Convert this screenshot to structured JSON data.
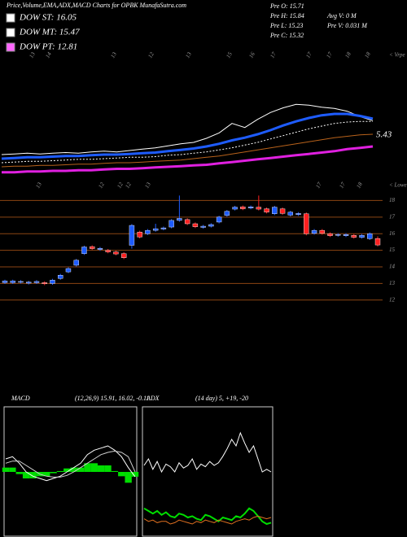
{
  "header": {
    "title": "Price,Volume,EMA,ADX,MACD Charts for OPBK MunafaSutra.com"
  },
  "legend": [
    {
      "label": "DOW ST: 16.05",
      "color": "#ffffff"
    },
    {
      "label": "DOW MT: 15.47",
      "color": "#ffffff"
    },
    {
      "label": "DOW PT: 12.81",
      "color": "#ff66ff"
    }
  ],
  "quote": [
    "Pre  O: 15.71",
    "Pre  H: 15.84",
    "Pre  L: 15.23",
    "Pre  C: 15.32",
    "Avg V: 0  M",
    "Pre  V: 0.031 M"
  ],
  "chart_data": [
    {
      "type": "line",
      "corner_label": "< Vrpe",
      "annotation": "5.43",
      "top_labels": [
        "13",
        "14",
        "13",
        "12",
        "13",
        "15",
        "16",
        "17",
        "17",
        "17",
        "18",
        "18"
      ],
      "ylim": [
        8,
        20
      ],
      "series": [
        {
          "color": "#ffffff",
          "width": 1,
          "values": [
            11.0,
            11.1,
            11.2,
            11.1,
            11.2,
            11.3,
            11.2,
            11.4,
            11.5,
            11.4,
            11.6,
            11.8,
            12.0,
            12.3,
            12.6,
            12.8,
            13.4,
            14.2,
            15.6,
            15.0,
            16.2,
            17.2,
            17.9,
            18.4,
            18.3,
            18.0,
            17.8,
            17.4,
            16.6,
            16.0
          ]
        },
        {
          "color": "#1e5cff",
          "width": 3,
          "values": [
            10.4,
            10.5,
            10.6,
            10.6,
            10.7,
            10.8,
            10.8,
            10.9,
            11.0,
            11.0,
            11.1,
            11.2,
            11.3,
            11.5,
            11.7,
            11.9,
            12.2,
            12.6,
            13.1,
            13.5,
            14.0,
            14.6,
            15.3,
            15.9,
            16.4,
            16.8,
            17.0,
            17.0,
            16.7,
            16.3
          ]
        },
        {
          "color": "#ffffff",
          "width": 1,
          "dash": true,
          "values": [
            9.8,
            9.9,
            10.0,
            10.0,
            10.1,
            10.2,
            10.3,
            10.3,
            10.4,
            10.5,
            10.6,
            10.6,
            10.7,
            10.9,
            11.0,
            11.2,
            11.4,
            11.7,
            12.0,
            12.4,
            12.8,
            13.3,
            13.8,
            14.3,
            14.8,
            15.2,
            15.6,
            15.8,
            15.9,
            15.9
          ]
        },
        {
          "color": "#b8621b",
          "width": 1,
          "values": [
            9.2,
            9.3,
            9.3,
            9.4,
            9.4,
            9.5,
            9.6,
            9.6,
            9.7,
            9.8,
            9.8,
            9.9,
            10.0,
            10.1,
            10.2,
            10.4,
            10.6,
            10.8,
            11.1,
            11.4,
            11.7,
            12.0,
            12.3,
            12.6,
            12.9,
            13.2,
            13.5,
            13.7,
            13.9,
            14.0
          ]
        },
        {
          "color": "#e020e0",
          "width": 3,
          "values": [
            8.4,
            8.4,
            8.5,
            8.5,
            8.6,
            8.6,
            8.7,
            8.7,
            8.8,
            8.9,
            8.9,
            9.0,
            9.1,
            9.2,
            9.3,
            9.4,
            9.5,
            9.7,
            9.9,
            10.1,
            10.3,
            10.5,
            10.7,
            10.9,
            11.1,
            11.3,
            11.5,
            11.8,
            12.0,
            12.2
          ]
        }
      ]
    },
    {
      "type": "candlestick",
      "corner_label": "< Lower",
      "top_labels": [
        "13",
        "12",
        "12",
        "12",
        "13",
        "17",
        "17",
        "18"
      ],
      "ylim": [
        11.5,
        19.1
      ],
      "yticks": [
        18,
        17,
        16,
        15,
        14,
        13,
        12
      ],
      "grid": true,
      "grid_color": "#8b4513",
      "up_color": "#1e5cff",
      "down_color": "#ff2020",
      "open": [
        13.05,
        13.05,
        13.08,
        13.02,
        13.05,
        13.05,
        13.0,
        13.3,
        13.7,
        14.1,
        14.8,
        15.22,
        15.05,
        15.0,
        14.9,
        14.8,
        15.3,
        16.1,
        16.0,
        16.2,
        16.28,
        16.4,
        16.8,
        16.85,
        16.6,
        16.38,
        16.45,
        16.7,
        17.1,
        17.48,
        17.62,
        17.55,
        17.6,
        17.5,
        17.2,
        17.5,
        17.12,
        17.15,
        17.2,
        16.02,
        16.2,
        16.0,
        15.9,
        15.88,
        15.9,
        15.78,
        15.7,
        15.71
      ],
      "high": [
        13.23,
        13.23,
        13.2,
        13.16,
        13.2,
        13.13,
        13.28,
        13.58,
        13.98,
        14.48,
        15.28,
        15.3,
        15.2,
        15.08,
        14.98,
        14.88,
        16.58,
        16.18,
        16.28,
        16.6,
        16.43,
        16.88,
        18.3,
        16.93,
        16.68,
        16.53,
        16.63,
        17.08,
        17.43,
        17.68,
        17.7,
        17.7,
        18.3,
        17.58,
        17.68,
        17.58,
        17.38,
        17.3,
        17.28,
        16.28,
        16.28,
        16.08,
        16.03,
        16.03,
        15.98,
        15.98,
        16.08,
        15.84
      ],
      "low": [
        12.97,
        12.97,
        13.0,
        12.94,
        12.97,
        12.9,
        12.92,
        13.22,
        13.62,
        14.02,
        14.72,
        15.02,
        14.97,
        14.82,
        14.7,
        14.47,
        15.1,
        15.72,
        15.92,
        16.12,
        16.2,
        16.32,
        16.72,
        16.52,
        16.34,
        16.3,
        16.37,
        16.62,
        17.02,
        17.4,
        17.42,
        17.47,
        17.4,
        17.22,
        17.12,
        17.14,
        17.04,
        17.07,
        15.9,
        15.94,
        15.94,
        15.8,
        15.82,
        15.8,
        15.7,
        15.7,
        15.62,
        15.23
      ],
      "close": [
        13.15,
        13.15,
        13.12,
        13.08,
        13.12,
        12.98,
        13.2,
        13.5,
        13.9,
        14.4,
        15.2,
        15.1,
        15.12,
        14.9,
        14.78,
        14.55,
        16.5,
        15.8,
        16.2,
        16.3,
        16.35,
        16.8,
        16.92,
        16.6,
        16.42,
        16.45,
        16.55,
        17.0,
        17.35,
        17.6,
        17.5,
        17.62,
        17.48,
        17.3,
        17.6,
        17.22,
        17.3,
        17.22,
        16.0,
        16.2,
        16.02,
        15.88,
        15.95,
        15.95,
        15.78,
        15.9,
        16.0,
        15.32
      ]
    },
    {
      "type": "macd",
      "title": "MACD",
      "subtitle": "(12,26,9) 15.91, 16.02, -0.11",
      "ylim": [
        -1.5,
        1.5
      ],
      "series": [
        {
          "color": "#ffffff",
          "values": [
            0.3,
            0.35,
            0.2,
            0.0,
            -0.1,
            -0.15,
            -0.2,
            -0.15,
            -0.1,
            0.0,
            0.1,
            0.2,
            0.4,
            0.5,
            0.55,
            0.6,
            0.5,
            0.35,
            0.1,
            -0.11
          ]
        },
        {
          "color": "#cfcfcf",
          "values": [
            0.2,
            0.25,
            0.25,
            0.15,
            0.05,
            -0.05,
            -0.1,
            -0.12,
            -0.12,
            -0.08,
            0.0,
            0.1,
            0.2,
            0.3,
            0.4,
            0.45,
            0.48,
            0.45,
            0.35,
            0.0
          ]
        },
        {
          "color": "#00dd00",
          "type": "bar",
          "values": [
            0.1,
            0.1,
            -0.05,
            -0.15,
            -0.15,
            -0.1,
            -0.1,
            -0.03,
            0.02,
            0.08,
            0.1,
            0.1,
            0.2,
            0.2,
            0.15,
            0.15,
            0.02,
            -0.1,
            -0.25,
            -0.11
          ]
        }
      ]
    },
    {
      "type": "line",
      "title": "ADX",
      "subtitle": "(14 day) 5, +19, -20",
      "ylim": [
        0,
        100
      ],
      "series": [
        {
          "color": "#ffffff",
          "width": 1,
          "values": [
            55,
            60,
            52,
            58,
            50,
            56,
            54,
            50,
            57,
            53,
            55,
            60,
            52,
            56,
            54,
            58,
            55,
            57,
            62,
            68,
            75,
            70,
            80,
            72,
            65,
            70,
            60,
            50,
            52,
            50
          ]
        },
        {
          "color": "#00dd00",
          "width": 2,
          "values": [
            22,
            20,
            18,
            20,
            17,
            19,
            16,
            15,
            18,
            17,
            15,
            16,
            14,
            13,
            17,
            16,
            14,
            12,
            15,
            14,
            13,
            16,
            15,
            18,
            22,
            20,
            16,
            12,
            10,
            11
          ]
        },
        {
          "color": "#e07020",
          "width": 1,
          "values": [
            14,
            12,
            13,
            11,
            12,
            12,
            10,
            11,
            13,
            12,
            11,
            10,
            12,
            11,
            13,
            12,
            11,
            13,
            12,
            11,
            10,
            12,
            13,
            14,
            13,
            15,
            16,
            15,
            14,
            15
          ]
        }
      ]
    }
  ]
}
